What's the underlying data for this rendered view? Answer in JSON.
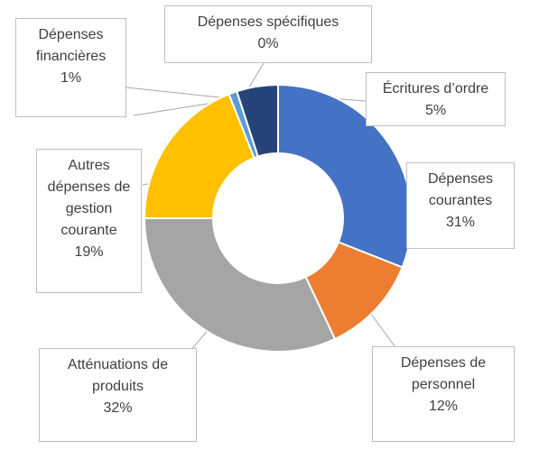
{
  "chart_data": {
    "type": "donut",
    "categories": [
      "Dépenses courantes",
      "Dépenses de personnel",
      "Atténuations de produits",
      "Autres dépenses de gestion courante",
      "Dépenses financières",
      "Dépenses spécifiques",
      "Écritures d’ordre"
    ],
    "values": [
      31,
      12,
      32,
      19,
      1,
      0,
      5
    ],
    "value_labels": [
      "31%",
      "12%",
      "32%",
      "19%",
      "1%",
      "0%",
      "5%"
    ],
    "colors": [
      "#4472c4",
      "#ed7d31",
      "#a5a5a5",
      "#ffc000",
      "#5b9bd5",
      "#70ad47",
      "#264478"
    ]
  }
}
